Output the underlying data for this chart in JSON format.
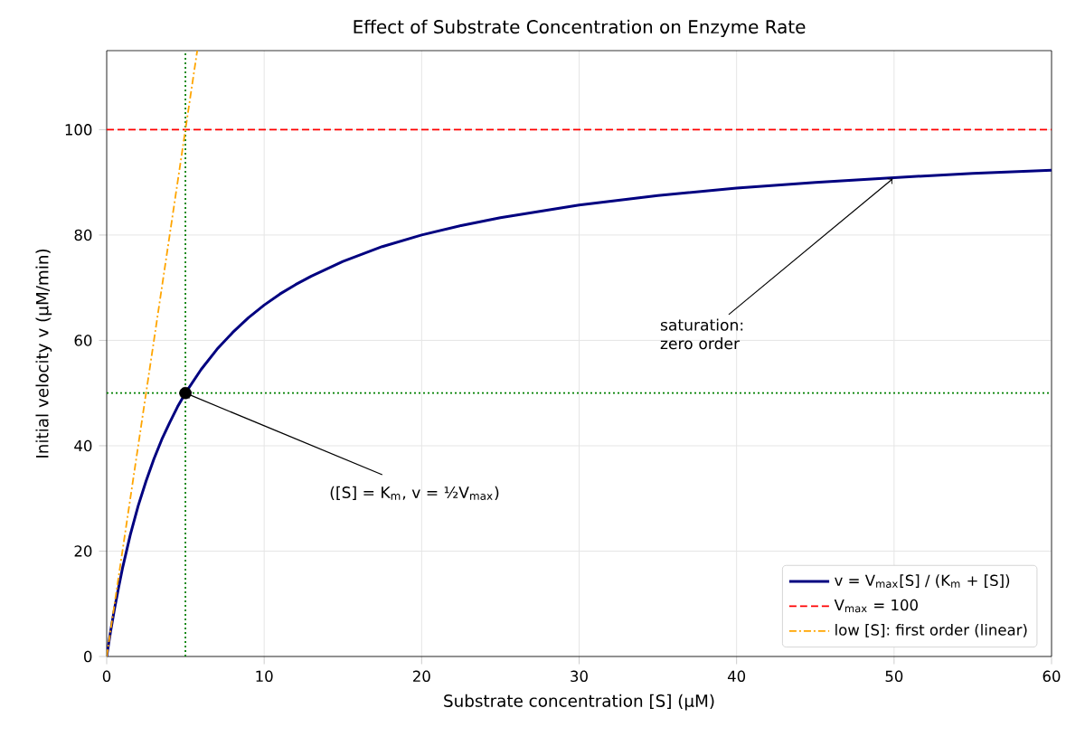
{
  "chart_data": {
    "type": "line",
    "title": "Effect of Substrate Concentration on Enzyme Rate",
    "xlabel": "Substrate concentration  [S]  (μM)",
    "ylabel": "Initial velocity  v  (μM/min)",
    "xlim": [
      0,
      60
    ],
    "ylim": [
      0,
      115
    ],
    "xticks": [
      0,
      10,
      20,
      30,
      40,
      50,
      60
    ],
    "yticks": [
      0,
      20,
      40,
      60,
      80,
      100
    ],
    "grid": true,
    "legend": "bottom right",
    "series": [
      {
        "name": "v = V$_{max}$[S] / (K$_{m}$ + [S])",
        "color": "#000080",
        "line_style": "solid",
        "x": [
          0,
          0.25,
          0.5,
          0.75,
          1,
          1.5,
          2,
          2.5,
          3,
          3.5,
          4,
          4.5,
          5,
          6,
          7,
          8,
          9,
          10,
          11,
          12,
          13,
          15,
          17.5,
          20,
          22.5,
          25,
          30,
          35,
          40,
          45,
          50,
          55,
          60
        ],
        "values": [
          0,
          4.8,
          9.1,
          13,
          16.7,
          23.1,
          28.6,
          33.3,
          37.5,
          41.2,
          44.4,
          47.4,
          50,
          54.5,
          58.3,
          61.5,
          64.3,
          66.7,
          68.8,
          70.6,
          72.2,
          75,
          77.8,
          80,
          81.8,
          83.3,
          85.7,
          87.5,
          88.9,
          90,
          90.9,
          91.7,
          92.3
        ]
      },
      {
        "name": "V$_{max}$ = 100",
        "color": "#ff0000",
        "line_style": "dashed",
        "x": [
          0,
          60
        ],
        "values": [
          100,
          100
        ]
      },
      {
        "name": "low [S]: first order (linear)",
        "color": "#ffa500",
        "line_style": "dashdot",
        "x": [
          0,
          5.75
        ],
        "values": [
          0,
          115
        ]
      },
      {
        "type": "scatter",
        "color": "#000000",
        "marker": "circle",
        "x": [
          5
        ],
        "values": [
          50
        ]
      }
    ],
    "ref_lines": [
      {
        "axis": "x",
        "value": 5,
        "color": "#008000",
        "line_style": "dotted"
      },
      {
        "axis": "y",
        "value": 50,
        "color": "#008000",
        "line_style": "dotted"
      }
    ],
    "annotations": [
      {
        "text": "saturation: zero order",
        "x": 50,
        "y": 90.9
      },
      {
        "text": "([S] = K$_{m}$,  v = ½V$_{max}$)",
        "x": 5,
        "y": 50
      }
    ]
  }
}
